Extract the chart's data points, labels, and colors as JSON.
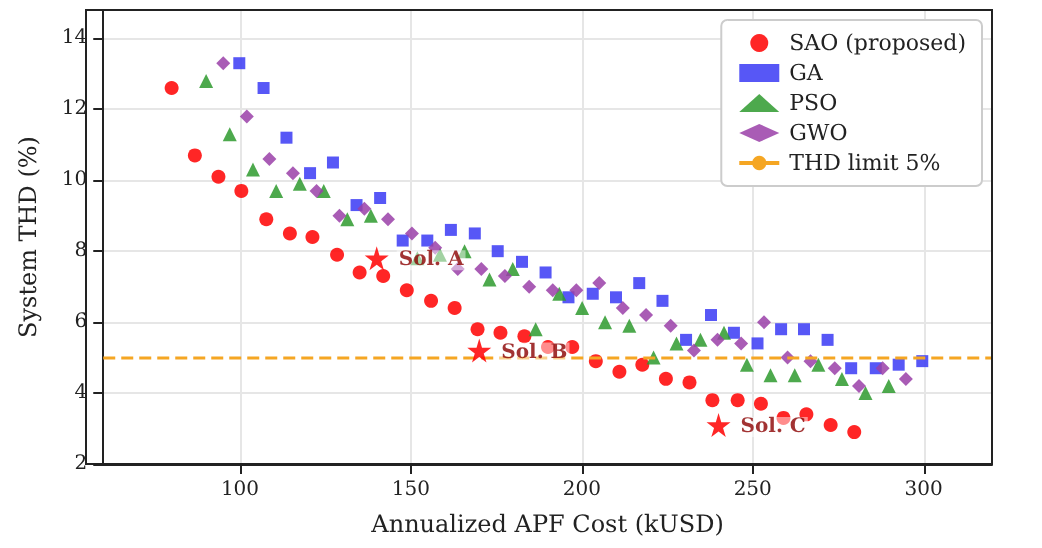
{
  "chart_data": {
    "type": "scatter",
    "xlabel": "Annualized APF Cost (kUSD)",
    "ylabel": "System THD (%)",
    "xlim": [
      60,
      320
    ],
    "xticks": [
      100,
      150,
      200,
      250,
      300
    ],
    "ylim": [
      2,
      14.8
    ],
    "yticks": [
      2,
      4,
      6,
      8,
      10,
      12,
      14
    ],
    "grid": true,
    "legend": "top right",
    "series": [
      {
        "name": "SAO (proposed)",
        "color": "#ff0000",
        "marker": "circle",
        "x": [
          80,
          86.8,
          93.7,
          100.4,
          107.7,
          114.6,
          121.2,
          128.4,
          135,
          141.9,
          148.8,
          155.9,
          162.8,
          169.5,
          176.2,
          183.2,
          190.1,
          197.2,
          204.1,
          211,
          217.7,
          224.6,
          231.5,
          238.2,
          245.6,
          252.4,
          259,
          265.7,
          272.8,
          279.7
        ],
        "values": [
          12.6,
          10.7,
          10.1,
          9.7,
          8.9,
          8.5,
          8.4,
          7.9,
          7.4,
          7.3,
          6.9,
          6.6,
          6.4,
          5.8,
          5.7,
          5.6,
          5.3,
          5.3,
          4.9,
          4.6,
          4.8,
          4.4,
          4.3,
          3.8,
          3.8,
          3.7,
          3.3,
          3.4,
          3.1,
          2.9
        ]
      },
      {
        "name": "GA",
        "color": "#3a3af5",
        "marker": "square",
        "x": [
          99.8,
          106.9,
          113.6,
          120.5,
          127.2,
          134.1,
          141,
          147.6,
          154.8,
          161.7,
          168.7,
          175.4,
          182.5,
          189.4,
          196.1,
          203.2,
          210,
          216.8,
          223.6,
          230.5,
          237.8,
          244.5,
          251.4,
          258.3,
          265,
          271.9,
          278.8,
          286,
          292.7,
          299.6
        ],
        "values": [
          13.3,
          12.6,
          11.2,
          10.2,
          10.5,
          9.3,
          9.5,
          8.3,
          8.3,
          8.6,
          8.5,
          8.0,
          7.7,
          7.4,
          6.7,
          6.8,
          6.7,
          7.1,
          6.6,
          5.5,
          6.2,
          5.7,
          5.4,
          5.8,
          5.8,
          5.5,
          4.7,
          4.7,
          4.8,
          4.9
        ]
      },
      {
        "name": "PSO",
        "color": "#2e9a2e",
        "marker": "triangle",
        "x": [
          90.1,
          97,
          103.8,
          110.6,
          117.5,
          124.5,
          131.4,
          138.3,
          151.9,
          158.5,
          165.7,
          173,
          179.8,
          186.5,
          193.4,
          200.1,
          206.8,
          213.9,
          221,
          227.7,
          234.7,
          241.6,
          248.3,
          255.2,
          262.3,
          269.2,
          276.1,
          283,
          289.8
        ],
        "values": [
          12.8,
          11.3,
          10.3,
          9.7,
          9.9,
          9.7,
          8.9,
          9.0,
          7.8,
          7.9,
          8.0,
          7.2,
          7.5,
          5.8,
          6.8,
          6.4,
          6.0,
          5.9,
          5.0,
          5.4,
          5.5,
          5.7,
          4.8,
          4.5,
          4.5,
          4.8,
          4.4,
          4.0,
          4.2
        ]
      },
      {
        "name": "GWO",
        "color": "#9a3fa8",
        "marker": "diamond",
        "x": [
          95.1,
          102,
          108.6,
          115.5,
          122.4,
          129.1,
          136.4,
          143.3,
          150.3,
          157.1,
          163.7,
          170.6,
          177.5,
          184.6,
          191.5,
          198.4,
          205.1,
          212,
          218.8,
          226,
          232.8,
          239.7,
          246.6,
          253.3,
          260.2,
          266.9,
          274,
          281.1,
          288,
          294.8
        ],
        "values": [
          13.3,
          11.8,
          10.6,
          10.2,
          9.7,
          9.0,
          9.2,
          8.9,
          8.5,
          8.1,
          7.5,
          7.5,
          7.3,
          7.0,
          6.9,
          6.9,
          7.1,
          6.4,
          6.2,
          5.9,
          5.2,
          5.5,
          5.4,
          6.0,
          5.0,
          4.9,
          4.7,
          4.2,
          4.7,
          4.4
        ]
      },
      {
        "color": "#ff0000",
        "marker": "star",
        "x": [
          140,
          170,
          240
        ],
        "values": [
          7.8,
          5.2,
          3.1
        ]
      }
    ],
    "ref_lines": [
      {
        "axis": "y",
        "value": 5,
        "label": "THD limit 5%",
        "color": "#f5a623",
        "line_style": "dashed"
      }
    ],
    "annotations": [
      {
        "text": "Sol. A",
        "x": 140,
        "y": 7.8
      },
      {
        "text": "Sol. B",
        "x": 170,
        "y": 5.2
      },
      {
        "text": "Sol. C",
        "x": 240,
        "y": 3.1
      }
    ]
  }
}
